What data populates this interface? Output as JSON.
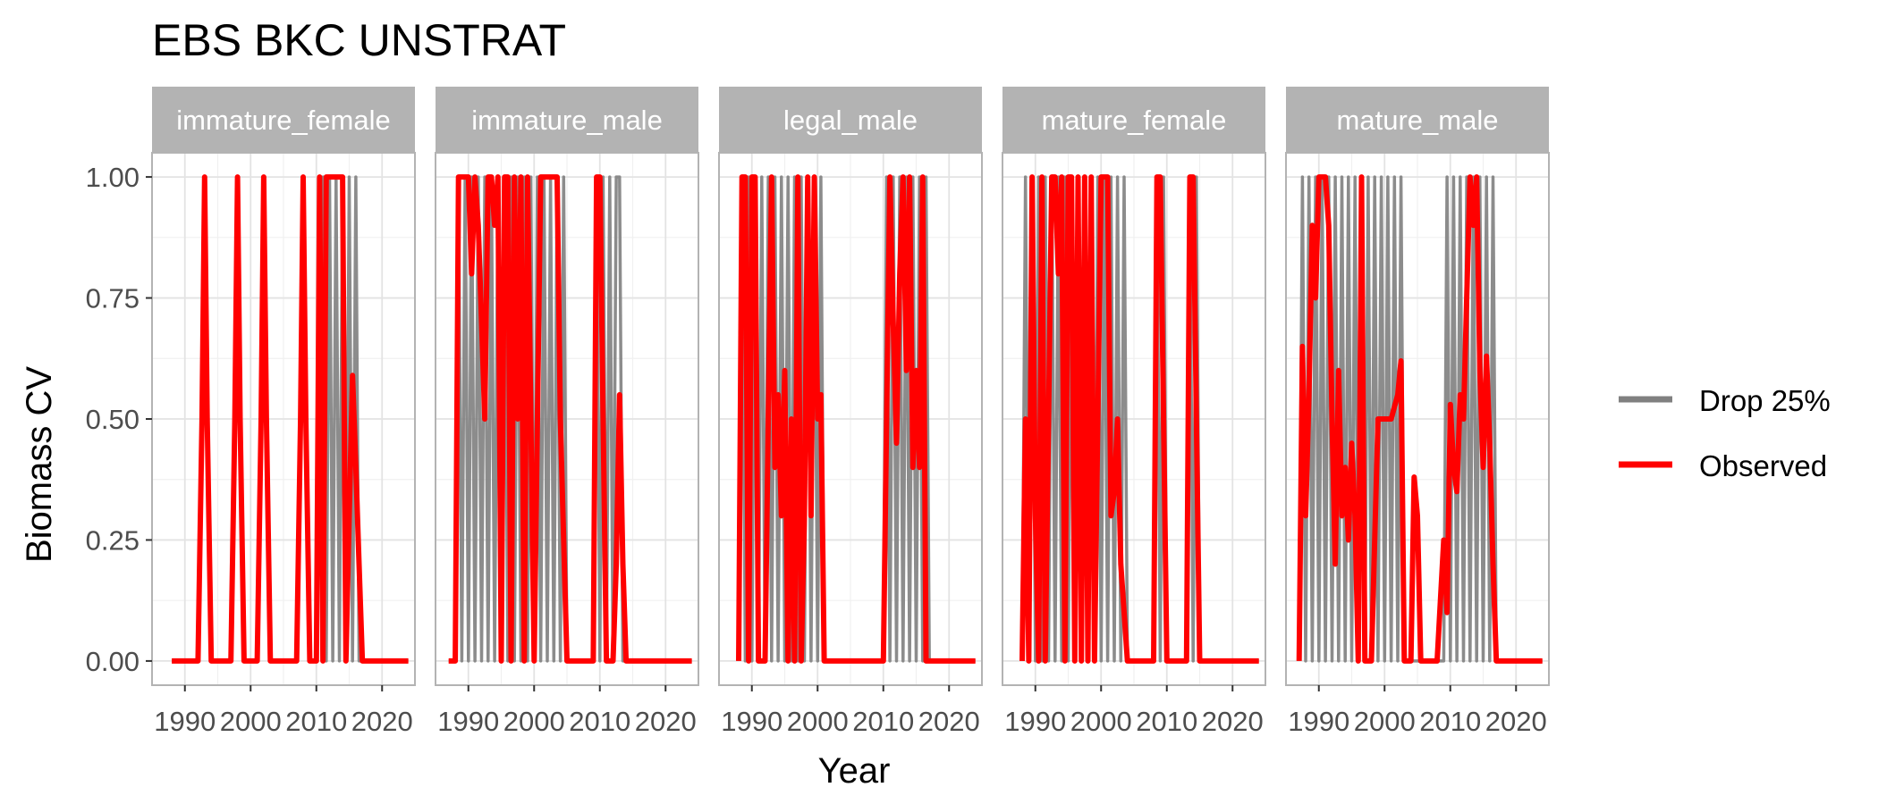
{
  "chart_data": {
    "type": "line",
    "title": "EBS BKC UNSTRAT",
    "xlabel": "Year",
    "ylabel": "Biomass CV",
    "xlim": [
      1985,
      2025
    ],
    "ylim": [
      -0.05,
      1.05
    ],
    "x_ticks": [
      1990,
      2000,
      2010,
      2020
    ],
    "x_tick_labels": [
      "1990",
      "2000",
      "2010",
      "2020"
    ],
    "y_ticks": [
      0,
      0.25,
      0.5,
      0.75,
      1.0
    ],
    "y_tick_labels": [
      "0.00",
      "0.25",
      "0.50",
      "0.75",
      "1.00"
    ],
    "legend": {
      "position": "right",
      "entries": [
        {
          "name": "Drop 25%",
          "color": "#808080"
        },
        {
          "name": "Observed",
          "color": "#ff0000"
        }
      ]
    },
    "colors": {
      "drop": "#808080",
      "observed": "#ff0000",
      "strip_bg": "#b3b3b3",
      "strip_text": "#ffffff",
      "grid": "#e3e3e3",
      "panel_border": "#b3b3b3"
    },
    "facets": [
      {
        "label": "immature_female",
        "observed": {
          "x": [
            1988,
            1992,
            1992.6,
            1993,
            1993.4,
            1994,
            1997,
            1997.6,
            1998,
            1998.4,
            1999,
            2001,
            2001.6,
            2002,
            2002.4,
            2003,
            2007,
            2007.6,
            2008,
            2008.4,
            2009,
            2010,
            2010.5,
            2011,
            2011.5,
            2014,
            2014.5,
            2015,
            2015.5,
            2016,
            2016.5,
            2017,
            2018,
            2024
          ],
          "y": [
            0,
            0,
            0.5,
            1,
            0.5,
            0,
            0,
            0.5,
            1,
            0.5,
            0,
            0,
            0.5,
            1,
            0.5,
            0,
            0,
            0.5,
            1,
            0.5,
            0,
            0,
            1,
            0,
            1,
            1,
            0,
            0.3,
            0.59,
            0.4,
            0.2,
            0,
            0,
            0
          ]
        },
        "drop": [
          {
            "x": [
              1988,
              1992,
              1993,
              1994,
              1997,
              1998,
              1999,
              2001,
              2002,
              2003,
              2007,
              2008,
              2009,
              2010,
              2011,
              2011.5,
              2012,
              2012.5,
              2013,
              2013.5,
              2014,
              2014.5,
              2015,
              2015.5,
              2016,
              2016.5,
              2017,
              2024
            ],
            "y": [
              0,
              0,
              1,
              0,
              0,
              1,
              0,
              0,
              1,
              0,
              0,
              1,
              0,
              0,
              1,
              0,
              1,
              0,
              1,
              0,
              1,
              0,
              1,
              0,
              1,
              0,
              0,
              0
            ]
          }
        ]
      },
      {
        "label": "immature_male",
        "observed": {
          "x": [
            1987,
            1988,
            1988.5,
            1989,
            1990,
            1990.5,
            1991,
            1991.5,
            1992,
            1992.5,
            1993,
            1993.5,
            1994,
            1994.5,
            1995,
            1995.5,
            1996,
            1996.5,
            1997,
            1997.5,
            1998,
            1998.5,
            1999,
            2000,
            2001,
            2001.5,
            2002,
            2003,
            2003.5,
            2004,
            2005,
            2009,
            2009.5,
            2010,
            2010.5,
            2011,
            2012,
            2012.5,
            2013,
            2013.5,
            2014,
            2024
          ],
          "y": [
            0,
            0,
            1,
            1,
            1,
            0.8,
            1,
            0.9,
            0.7,
            0.5,
            1,
            1,
            0.9,
            1,
            0,
            1,
            1,
            0,
            1,
            0.5,
            1,
            0,
            1,
            0,
            1,
            1,
            1,
            1,
            1,
            0.5,
            0,
            0,
            1,
            1,
            0.5,
            0,
            0,
            0.2,
            0.55,
            0.2,
            0,
            0
          ]
        },
        "drop": [
          {
            "x": [
              1987,
              1988,
              1988.5,
              1989,
              1989.5,
              1990,
              1990.5,
              1991,
              1991.5,
              1992,
              1992.5,
              1993,
              1993.5,
              1994,
              1994.5,
              1995,
              1995.5,
              1996,
              1996.5,
              1997,
              1997.5,
              1998,
              1998.5,
              1999,
              1999.5,
              2000,
              2000.5,
              2001,
              2001.5,
              2002,
              2002.5,
              2003,
              2003.5,
              2004,
              2004.5,
              2005,
              2009,
              2009.5,
              2010,
              2010.5,
              2011,
              2011.5,
              2012,
              2012.5,
              2013,
              2013.5,
              2014,
              2024
            ],
            "y": [
              0,
              0,
              1,
              0,
              1,
              0,
              1,
              0,
              1,
              0,
              1,
              0,
              1,
              0,
              1,
              0,
              1,
              0,
              1,
              0,
              1,
              0,
              1,
              0,
              1,
              0,
              1,
              0,
              1,
              0,
              1,
              0,
              1,
              0,
              1,
              0,
              0,
              1,
              0,
              1,
              0,
              1,
              0,
              1,
              1,
              0,
              0,
              0
            ]
          }
        ]
      },
      {
        "label": "legal_male",
        "observed": {
          "x": [
            1988,
            1988.5,
            1989,
            1989.5,
            1990,
            1990.5,
            1991,
            1992,
            1992.5,
            1993,
            1993.5,
            1994,
            1994.5,
            1995,
            1995.5,
            1996,
            1996.5,
            1997,
            1997.5,
            1998,
            1998.5,
            1999,
            1999.5,
            2000,
            2000.5,
            2001,
            2002,
            2010,
            2010.5,
            2011,
            2011.5,
            2012,
            2012.5,
            2013,
            2013.5,
            2014,
            2014.5,
            2015,
            2015.5,
            2016,
            2016.5,
            2017,
            2024
          ],
          "y": [
            0,
            1,
            1,
            0,
            1,
            1,
            0,
            0,
            0.5,
            1,
            0.4,
            0.55,
            0.3,
            0.6,
            0,
            0.5,
            0,
            1,
            0,
            0.3,
            1,
            0.3,
            1,
            0.5,
            0.55,
            0,
            0,
            0,
            0.5,
            1,
            0.7,
            0.45,
            0.8,
            1,
            0.6,
            1,
            0.4,
            0.6,
            0.4,
            1,
            0,
            0,
            0
          ]
        },
        "drop": [
          {
            "x": [
              1988,
              1988.5,
              1989,
              1989.5,
              1990,
              1990.5,
              1991,
              1991.5,
              1992,
              1992.5,
              1993,
              1993.5,
              1994,
              1994.5,
              1995,
              1995.5,
              1996,
              1996.5,
              1997,
              1997.5,
              1998,
              1998.5,
              1999,
              1999.5,
              2000,
              2000.5,
              2001,
              2002,
              2010,
              2010.5,
              2011,
              2011.5,
              2012,
              2012.5,
              2013,
              2013.5,
              2014,
              2014.5,
              2015,
              2015.5,
              2016,
              2016.5,
              2017,
              2024
            ],
            "y": [
              0,
              1,
              0,
              1,
              0,
              1,
              0,
              1,
              0,
              1,
              0,
              1,
              0,
              1,
              0,
              1,
              0,
              1,
              0,
              1,
              0,
              1,
              0,
              1,
              0,
              1,
              0,
              0,
              0,
              1,
              0,
              1,
              0,
              1,
              0,
              1,
              0,
              1,
              0,
              1,
              0,
              1,
              0,
              0
            ]
          }
        ]
      },
      {
        "label": "mature_female",
        "observed": {
          "x": [
            1988,
            1988.5,
            1989,
            1989.5,
            1990,
            1990.5,
            1991,
            1991.5,
            1992,
            1992.5,
            1993,
            1993.5,
            1994,
            1994.5,
            1995,
            1995.5,
            1996,
            1996.5,
            1997,
            1997.5,
            1998,
            1998.5,
            1999,
            2000,
            2000.5,
            2001,
            2001.5,
            2002,
            2002.5,
            2003,
            2003.5,
            2004,
            2008,
            2008.5,
            2009,
            2009.5,
            2010,
            2013,
            2013.5,
            2014,
            2014.5,
            2015,
            2024
          ],
          "y": [
            0,
            0.5,
            0,
            1,
            0.3,
            0,
            1,
            0,
            0.5,
            1,
            1,
            0.8,
            1,
            0,
            1,
            1,
            0,
            1,
            0,
            1,
            0,
            1,
            0,
            1,
            1,
            1,
            0.3,
            0.35,
            0.5,
            0.2,
            0.1,
            0,
            0,
            1,
            1,
            0.5,
            0,
            0,
            1,
            1,
            0.5,
            0,
            0
          ]
        },
        "drop": [
          {
            "x": [
              1988,
              1988.5,
              1989,
              1989.5,
              1990,
              1990.5,
              1991,
              1991.5,
              1992,
              1992.5,
              1993,
              1993.5,
              1994,
              1994.5,
              1995,
              1995.5,
              1996,
              1996.5,
              1997,
              1997.5,
              1998,
              1998.5,
              1999,
              1999.5,
              2000,
              2000.5,
              2001,
              2001.5,
              2002,
              2002.5,
              2003,
              2003.5,
              2004,
              2008,
              2008.5,
              2009,
              2009.5,
              2010,
              2013,
              2013.5,
              2014,
              2014.5,
              2015,
              2024
            ],
            "y": [
              0,
              1,
              0,
              1,
              0,
              1,
              0,
              1,
              0,
              1,
              0,
              1,
              0,
              1,
              0,
              1,
              0,
              1,
              0,
              1,
              0,
              1,
              0,
              1,
              0,
              1,
              0,
              1,
              0,
              1,
              0,
              1,
              0,
              0,
              1,
              0,
              1,
              0,
              0,
              1,
              0,
              1,
              0,
              0
            ]
          }
        ]
      },
      {
        "label": "mature_male",
        "observed": {
          "x": [
            1987,
            1987.5,
            1988,
            1988.5,
            1989,
            1989.5,
            1990,
            1990.5,
            1991,
            1991.5,
            1992,
            1992.5,
            1993,
            1993.5,
            1994,
            1994.5,
            1995,
            1995.5,
            1996,
            1996.5,
            1997,
            1998,
            1999,
            2000,
            2000.5,
            2001,
            2002,
            2002.5,
            2003,
            2004,
            2004.5,
            2005,
            2005.5,
            2006,
            2007,
            2008,
            2009,
            2009.5,
            2010,
            2010.5,
            2011,
            2011.5,
            2012,
            2012.5,
            2013,
            2013.5,
            2014,
            2014.5,
            2015,
            2015.5,
            2016,
            2016.5,
            2017,
            2024
          ],
          "y": [
            0,
            0.65,
            0.3,
            0.55,
            0.9,
            0.75,
            1,
            1,
            1,
            0.9,
            0.5,
            0.2,
            0.6,
            0.3,
            0.4,
            0.25,
            0.45,
            0.3,
            0,
            1,
            0,
            0,
            0.5,
            0.5,
            0.5,
            0.5,
            0.55,
            0.62,
            0,
            0,
            0.38,
            0.3,
            0,
            0,
            0,
            0,
            0.25,
            0.1,
            0.53,
            0.4,
            0.35,
            0.55,
            0.5,
            0.75,
            1,
            0.9,
            1,
            0.6,
            0.4,
            0.63,
            0.45,
            0.2,
            0,
            0
          ]
        },
        "drop": [
          {
            "x": [
              1987,
              1987.5,
              1988,
              1988.5,
              1989,
              1989.5,
              1990,
              1990.5,
              1991,
              1991.5,
              1992,
              1992.5,
              1993,
              1993.5,
              1994,
              1994.5,
              1995,
              1995.5,
              1996,
              1996.5,
              1997,
              1997.5,
              1998,
              1998.5,
              1999,
              1999.5,
              2000,
              2000.5,
              2001,
              2001.5,
              2002,
              2002.5,
              2003,
              2009,
              2009.5,
              2010,
              2010.5,
              2011,
              2011.5,
              2012,
              2012.5,
              2013,
              2013.5,
              2014,
              2014.5,
              2015,
              2015.5,
              2016,
              2016.5,
              2017,
              2024
            ],
            "y": [
              0,
              1,
              0,
              1,
              0,
              1,
              0,
              1,
              0,
              1,
              0,
              1,
              0,
              1,
              0,
              1,
              0,
              1,
              0,
              1,
              0,
              1,
              0,
              1,
              0,
              1,
              0,
              1,
              0,
              1,
              0,
              1,
              0,
              0,
              1,
              0,
              1,
              0,
              1,
              0,
              1,
              0,
              1,
              0,
              1,
              0,
              1,
              0,
              1,
              0,
              0
            ]
          }
        ]
      }
    ]
  }
}
